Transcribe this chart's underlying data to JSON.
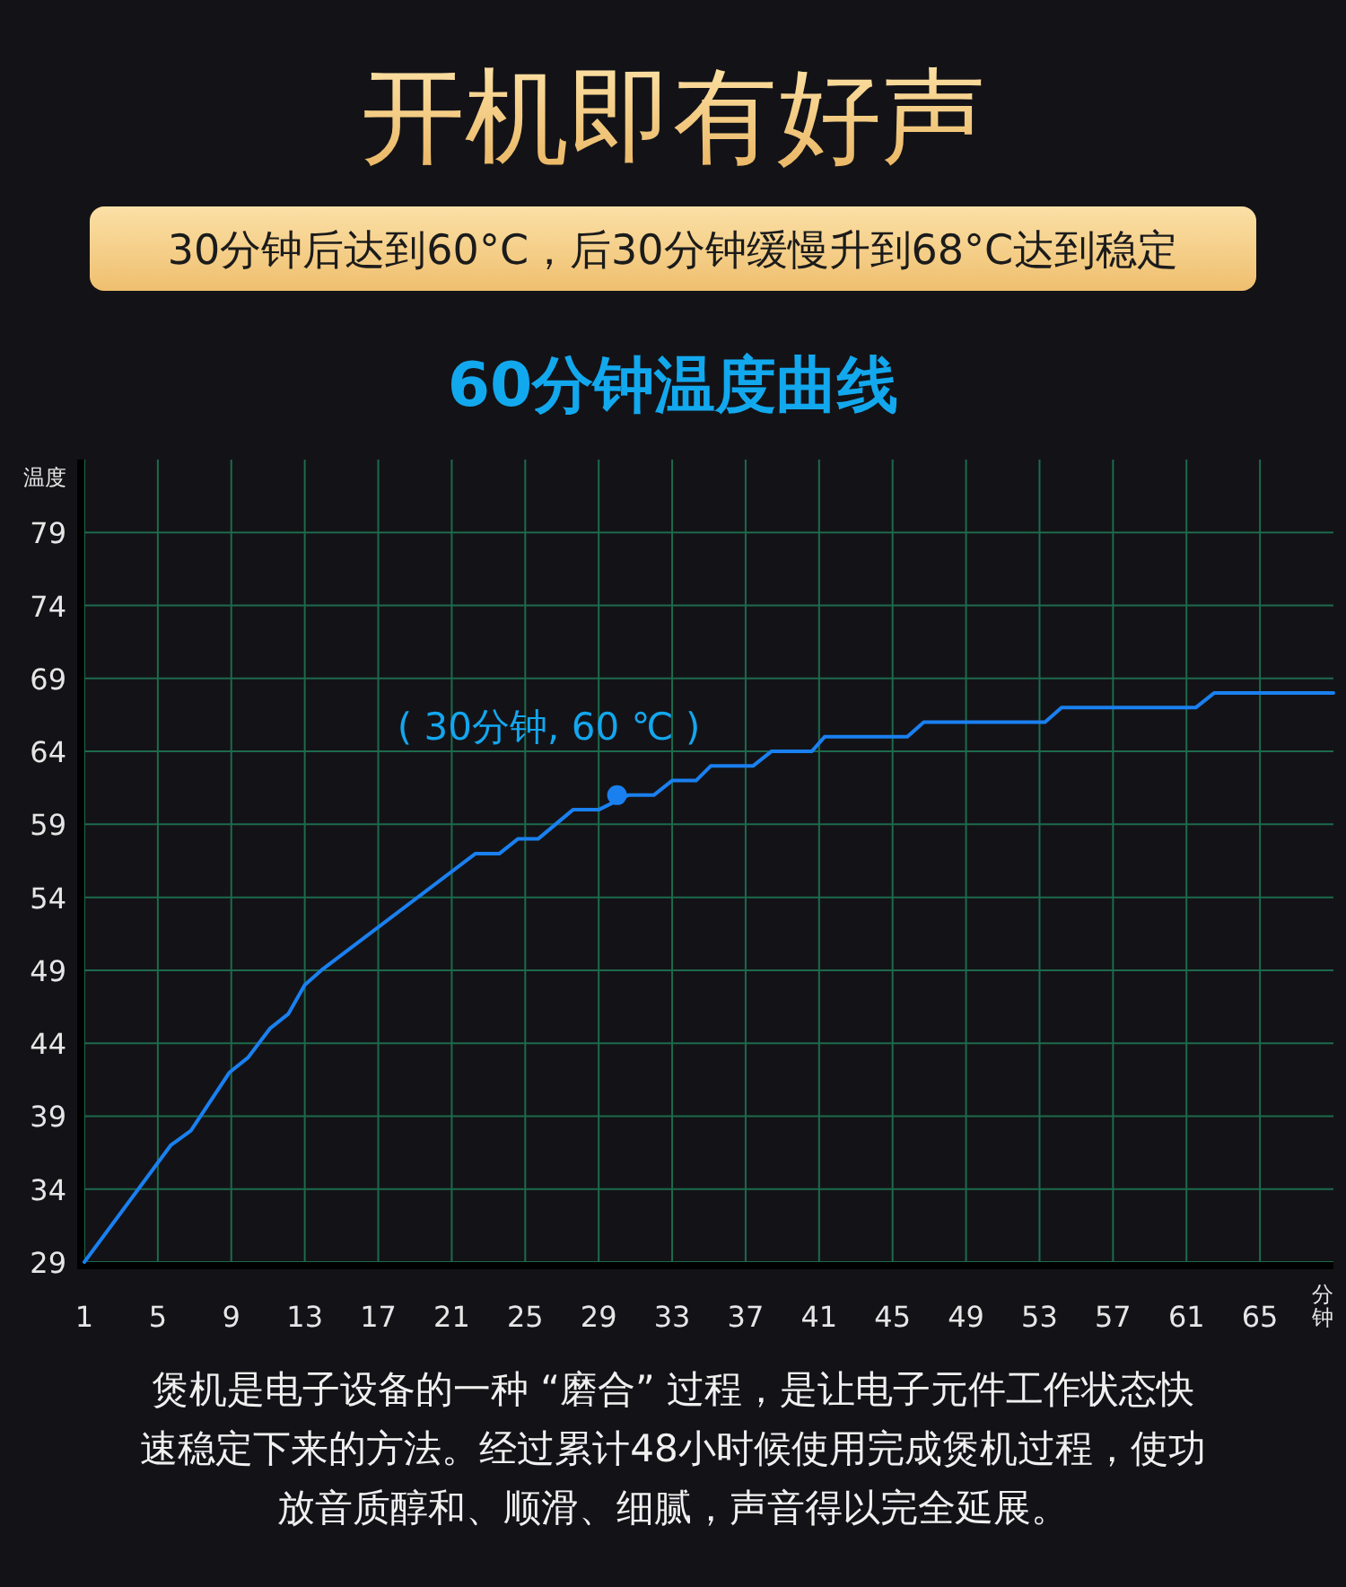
{
  "chart_data": {
    "type": "line",
    "title": "开机即有好声",
    "subtitle": "30分钟后达到60°C，后30分钟缓慢升到68°C达到稳定",
    "xlabel": "分钟",
    "ylabel": "温度",
    "annotations": [
      "60分钟温度曲线",
      {
        "text": "( 30分钟, 60 ℃ )",
        "x": 30,
        "y": 61
      },
      "煲机是电子设备的一种 “磨合” 过程，是让电子元件工作状态快速稳定下来的方法。经过累计48小时候使用完成煲机过程，使功放音质醇和、顺滑、细腻，声音得以完全延展。"
    ],
    "series": [
      {
        "color": "#1a80f0",
        "x": [
          1,
          5.7,
          6.8,
          8.9,
          9.9,
          11.1,
          12.1,
          13,
          13.9,
          22.3,
          23.6,
          24.6,
          25.7,
          27.6,
          29,
          30.6,
          32,
          33,
          34.3,
          35.1,
          37.4,
          38.4,
          40.6,
          41.3,
          45.8,
          46.7,
          53.3,
          54.2,
          61.5,
          62.5,
          69
        ],
        "values": [
          29,
          37,
          38,
          42,
          43,
          45,
          46,
          48,
          49,
          57,
          57,
          58,
          58,
          60,
          60,
          61,
          61,
          62,
          62,
          63,
          63,
          64,
          64,
          65,
          65,
          66,
          66,
          67,
          67,
          68,
          68
        ]
      }
    ],
    "xlim": [
      1,
      69
    ],
    "ylim": [
      29,
      84
    ],
    "xticks": [
      1,
      5,
      9,
      13,
      17,
      21,
      25,
      29,
      33,
      37,
      41,
      45,
      49,
      53,
      57,
      61,
      65
    ],
    "yticks": [
      29,
      34,
      39,
      44,
      49,
      54,
      59,
      64,
      69,
      74,
      79
    ],
    "grid": true,
    "marker": "none",
    "line_style": "solid"
  }
}
